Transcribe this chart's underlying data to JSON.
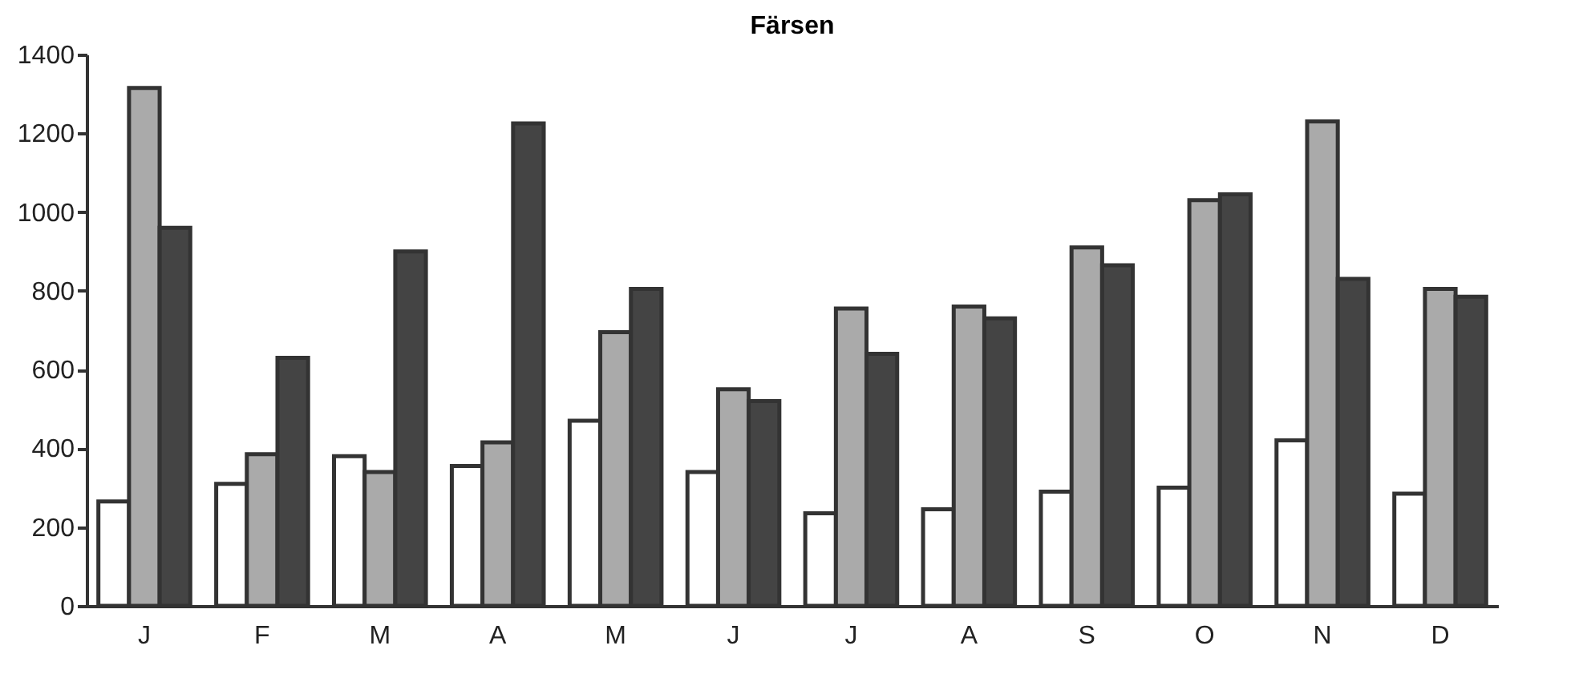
{
  "chart_data": {
    "type": "bar",
    "title": "Färsen",
    "categories": [
      "J",
      "F",
      "M",
      "A",
      "M",
      "J",
      "J",
      "A",
      "S",
      "O",
      "N",
      "D"
    ],
    "series": [
      {
        "color": "#ffffff",
        "values": [
          265,
          310,
          380,
          355,
          470,
          340,
          235,
          245,
          290,
          300,
          420,
          285
        ]
      },
      {
        "color": "#aaaaaa",
        "values": [
          1315,
          385,
          340,
          415,
          695,
          550,
          755,
          760,
          910,
          1030,
          1230,
          805
        ]
      },
      {
        "color": "#444444",
        "values": [
          960,
          630,
          900,
          1225,
          805,
          520,
          640,
          730,
          865,
          1045,
          830,
          785
        ]
      }
    ],
    "ylim": [
      0,
      1400
    ],
    "yticks": [
      0,
      200,
      400,
      600,
      800,
      1000,
      1200,
      1400
    ],
    "grid": false
  }
}
